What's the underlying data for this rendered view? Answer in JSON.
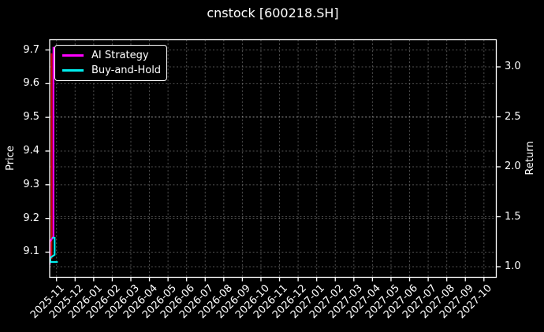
{
  "chart_data": {
    "type": "line",
    "title": "cnstock [600218.SH]",
    "background_color": "#000000",
    "foreground_color": "#ffffff",
    "grid": {
      "visible": true,
      "style": "dashed",
      "color": "#ffffff",
      "opacity": 0.32
    },
    "x_axis": {
      "tick_labels": [
        "2025-11",
        "2025-12",
        "2026-01",
        "2026-02",
        "2026-03",
        "2026-04",
        "2026-05",
        "2026-06",
        "2026-07",
        "2026-08",
        "2026-09",
        "2026-10",
        "2026-11",
        "2026-12",
        "2027-01",
        "2027-02",
        "2027-03",
        "2027-04",
        "2027-05",
        "2027-06",
        "2027-07",
        "2027-08",
        "2027-09",
        "2027-10"
      ],
      "rotation_deg": 45
    },
    "left_axis": {
      "label": "Price",
      "tick_labels": [
        "9.1",
        "9.2",
        "9.3",
        "9.4",
        "9.5",
        "9.6",
        "9.7"
      ],
      "range": [
        9.025,
        9.733
      ]
    },
    "right_axis": {
      "label": "Return",
      "tick_labels": [
        "1.0",
        "1.5",
        "2.0",
        "2.5",
        "3.0"
      ],
      "range": [
        0.9,
        3.28
      ]
    },
    "legend": {
      "position": "upper-left",
      "entries": [
        {
          "label": "AI Strategy",
          "color": "#ff00ff"
        },
        {
          "label": "Buy-and-Hold",
          "color": "#00eeee"
        }
      ]
    },
    "series": [
      {
        "name": "Price",
        "axis": "price",
        "color": "#d40000",
        "width": 2,
        "in_legend": false,
        "points": [
          [
            "2025-10-23",
            9.69
          ],
          [
            "2025-10-23",
            9.08
          ]
        ]
      },
      {
        "name": "AI Strategy",
        "axis": "return",
        "color": "#ff00ff",
        "width": 2.2,
        "in_legend": true,
        "points": [
          [
            "2025-10-26",
            3.2
          ],
          [
            "2025-10-26",
            1.3
          ],
          [
            "2025-10-20",
            1.25
          ],
          [
            "2025-10-20",
            1.02
          ]
        ]
      },
      {
        "name": "Buy-and-Hold",
        "axis": "return",
        "color": "#00eeee",
        "width": 2.2,
        "in_legend": true,
        "points": [
          [
            "2025-10-24",
            1.29
          ],
          [
            "2025-10-28",
            1.29
          ],
          [
            "2025-10-28",
            1.12
          ],
          [
            "2025-10-21",
            1.09
          ],
          [
            "2025-10-21",
            1.047
          ],
          [
            "2025-11-03",
            1.047
          ]
        ]
      }
    ]
  }
}
